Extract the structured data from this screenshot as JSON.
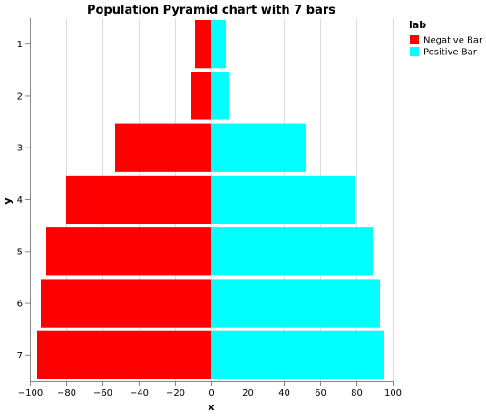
{
  "chart_data": {
    "type": "bar",
    "orientation": "horizontal",
    "title": "Population Pyramid chart with 7 bars",
    "xlabel": "x",
    "ylabel": "y",
    "categories": [
      "1",
      "2",
      "3",
      "4",
      "5",
      "6",
      "7"
    ],
    "series": [
      {
        "name": "Negative Bar",
        "color": "#ff0000",
        "values": [
          -9,
          -11,
          -53,
          -80,
          -91,
          -94,
          -96
        ]
      },
      {
        "name": "Positive Bar",
        "color": "#00ffff",
        "values": [
          8,
          10,
          52,
          79,
          89,
          93,
          95
        ]
      }
    ],
    "xlim": [
      -100,
      100
    ],
    "xticks": [
      "−100",
      "−80",
      "−60",
      "−40",
      "−20",
      "0",
      "20",
      "40",
      "60",
      "80",
      "100"
    ],
    "grid": true,
    "legend": {
      "title": "lab",
      "position": "top-right"
    }
  }
}
